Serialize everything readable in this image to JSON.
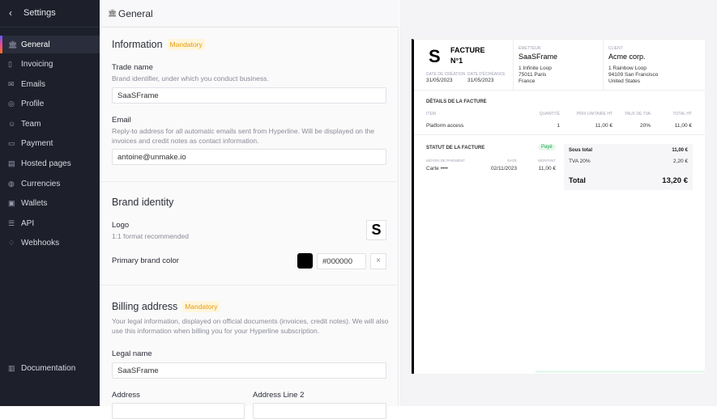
{
  "sidebar": {
    "title": "Settings",
    "items": [
      {
        "label": "General",
        "icon": "bank-icon",
        "active": true
      },
      {
        "label": "Invoicing",
        "icon": "document-icon"
      },
      {
        "label": "Emails",
        "icon": "mail-icon"
      },
      {
        "label": "Profile",
        "icon": "user-circle-icon"
      },
      {
        "label": "Team",
        "icon": "team-icon"
      },
      {
        "label": "Payment",
        "icon": "card-icon"
      },
      {
        "label": "Hosted pages",
        "icon": "pages-icon"
      },
      {
        "label": "Currencies",
        "icon": "coins-icon"
      },
      {
        "label": "Wallets",
        "icon": "wallet-icon"
      },
      {
        "label": "API",
        "icon": "database-icon"
      },
      {
        "label": "Webhooks",
        "icon": "bell-icon"
      }
    ],
    "documentation": "Documentation"
  },
  "header": {
    "title": "General"
  },
  "information": {
    "title": "Information",
    "badge": "Mandatory",
    "trade_name": {
      "label": "Trade name",
      "desc": "Brand identifier, under which you conduct business.",
      "value": "SaaSFrame"
    },
    "email": {
      "label": "Email",
      "desc": "Reply-to address for all automatic emails sent from Hyperline. Will be displayed on the invoices and credit notes as contact information.",
      "value": "antoine@unmake.io"
    }
  },
  "brand": {
    "title": "Brand identity",
    "logo_label": "Logo",
    "logo_desc": "1:1 format recommended",
    "color_label": "Primary brand color",
    "color_value": "#000000"
  },
  "billing": {
    "title": "Billing address",
    "badge": "Mandatory",
    "desc": "Your legal information, displayed on official documents (invoices, credit notes). We will also use this information when billing you for your Hyperline subscription.",
    "legal_name_label": "Legal name",
    "legal_name": "SaaSFrame",
    "address_label": "Address",
    "address2_label": "Address Line 2"
  },
  "invoice": {
    "title": "FACTURE",
    "number": "N°1",
    "created_label": "DATE DE CRÉATION",
    "created": "31/05/2023",
    "due_label": "DATE D'ÉCHÉANCE",
    "due": "31/05/2023",
    "issuer_label": "ÉMETTEUR",
    "issuer": "SaaSFrame",
    "issuer_addr": [
      "1 Infinite Loop",
      "75011 Paris",
      "France"
    ],
    "client_label": "CLIENT",
    "client": "Acme corp.",
    "client_addr": [
      "1 Rainbow Loop",
      "94109 San Francisco",
      "United States"
    ],
    "details_title": "DÉTAILS DE LA FACTURE",
    "cols": [
      "ITEM",
      "QUANTITÉ",
      "PRIX UNITAIRE HT",
      "TAUX DE TVA",
      "TOTAL HT"
    ],
    "row": [
      "Platform access",
      "1",
      "11,00 €",
      "20%",
      "11,00 €"
    ],
    "status_title": "STATUT DE LA FACTURE",
    "status": "Payé",
    "pay_cols": [
      "MOYEN DE PAIEMENT",
      "DATE",
      "MONTANT"
    ],
    "pay_row": [
      "Carte ••••",
      "02/11/2023",
      "11,00 €"
    ],
    "subtotal_label": "Sous total",
    "subtotal": "11,00 €",
    "tva_label": "TVA 20%",
    "tva": "2,20 €",
    "total_label": "Total",
    "total": "13,20 €"
  },
  "colors": {
    "sidebar": "#1d1f2b",
    "badge": "#e49b0f",
    "paid": "#16a34a"
  }
}
